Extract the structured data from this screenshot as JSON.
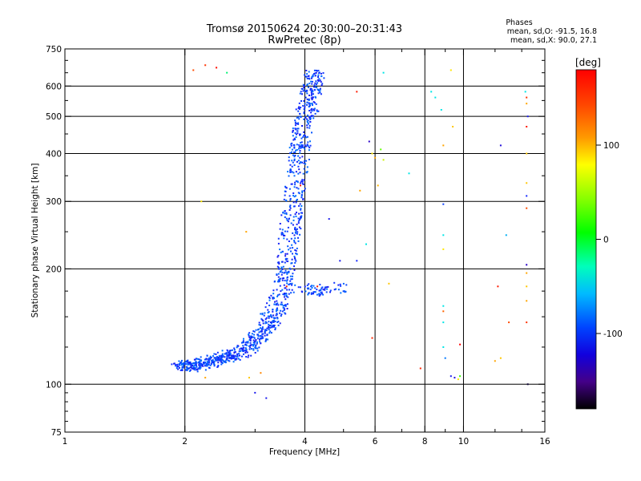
{
  "title": "Tromsø 20150624 20:30:00–20:31:43",
  "subtitle": "RwPretec (8p)",
  "stats": {
    "heading": "Phases",
    "line1": "mean, sd,O: -91.5, 16.8",
    "line2": "mean, sd,X:  90.0, 27.1"
  },
  "chart_data": {
    "type": "scatter",
    "title": "Tromsø 20150624 20:30:00–20:31:43",
    "subtitle": "RwPretec (8p)",
    "xlabel": "Frequency [MHz]",
    "ylabel": "Stationary phase Virtual Height [km]",
    "xscale": "log2",
    "yscale": "log",
    "xlim": [
      1,
      16
    ],
    "ylim": [
      75,
      750
    ],
    "x_ticks": [
      1,
      2,
      4,
      6,
      8,
      10,
      16
    ],
    "x_tick_labels": [
      "1",
      "2",
      "4",
      "6",
      "8",
      "10",
      "16"
    ],
    "y_ticks": [
      75,
      100,
      200,
      300,
      400,
      500,
      600,
      750
    ],
    "y_tick_labels": [
      "75",
      "100",
      "200",
      "300",
      "400",
      "500",
      "600",
      "750"
    ],
    "grid": true,
    "colorbar": {
      "label": "[deg]",
      "range": [
        -180,
        180
      ],
      "ticks": [
        100,
        0,
        -100
      ],
      "tick_labels": [
        "100",
        "0",
        "-100"
      ]
    },
    "trace_O_mode": {
      "phase_deg": -100,
      "points": [
        [
          1.95,
          112
        ],
        [
          2.0,
          112
        ],
        [
          2.1,
          111
        ],
        [
          2.2,
          113
        ],
        [
          2.3,
          114
        ],
        [
          2.4,
          116
        ],
        [
          2.5,
          117
        ],
        [
          2.6,
          119
        ],
        [
          2.75,
          120
        ],
        [
          2.9,
          125
        ],
        [
          3.0,
          130
        ],
        [
          3.1,
          135
        ],
        [
          3.2,
          142
        ],
        [
          3.3,
          150
        ],
        [
          3.4,
          160
        ],
        [
          3.5,
          172
        ],
        [
          3.55,
          190
        ],
        [
          3.6,
          210
        ],
        [
          3.65,
          240
        ],
        [
          3.7,
          270
        ],
        [
          3.75,
          300
        ],
        [
          3.8,
          340
        ],
        [
          3.85,
          380
        ],
        [
          3.9,
          420
        ],
        [
          3.95,
          460
        ],
        [
          4.0,
          500
        ],
        [
          4.1,
          540
        ],
        [
          4.15,
          580
        ],
        [
          4.2,
          620
        ],
        [
          4.25,
          650
        ]
      ]
    },
    "trace_branch": {
      "phase_deg": -100,
      "points": [
        [
          3.9,
          178
        ],
        [
          4.1,
          176
        ],
        [
          4.3,
          175
        ],
        [
          4.6,
          177
        ],
        [
          4.9,
          180
        ]
      ]
    },
    "outliers": [
      {
        "x": 2.1,
        "y": 660,
        "phase": 150
      },
      {
        "x": 2.25,
        "y": 680,
        "phase": 160
      },
      {
        "x": 2.4,
        "y": 670,
        "phase": 175
      },
      {
        "x": 2.55,
        "y": 650,
        "phase": -20
      },
      {
        "x": 2.85,
        "y": 250,
        "phase": 120
      },
      {
        "x": 2.2,
        "y": 300,
        "phase": 100
      },
      {
        "x": 3.0,
        "y": 95,
        "phase": -120
      },
      {
        "x": 3.2,
        "y": 92,
        "phase": -120
      },
      {
        "x": 3.1,
        "y": 107,
        "phase": 130
      },
      {
        "x": 2.9,
        "y": 104,
        "phase": 110
      },
      {
        "x": 2.25,
        "y": 104,
        "phase": 120
      },
      {
        "x": 5.4,
        "y": 580,
        "phase": 170
      },
      {
        "x": 5.8,
        "y": 430,
        "phase": -140
      },
      {
        "x": 5.9,
        "y": 400,
        "phase": 100
      },
      {
        "x": 6.0,
        "y": 390,
        "phase": 120
      },
      {
        "x": 6.2,
        "y": 410,
        "phase": 40
      },
      {
        "x": 6.3,
        "y": 385,
        "phase": 80
      },
      {
        "x": 5.5,
        "y": 320,
        "phase": 120
      },
      {
        "x": 6.1,
        "y": 330,
        "phase": 115
      },
      {
        "x": 6.3,
        "y": 650,
        "phase": -40
      },
      {
        "x": 5.7,
        "y": 232,
        "phase": -40
      },
      {
        "x": 6.5,
        "y": 183,
        "phase": 110
      },
      {
        "x": 5.9,
        "y": 132,
        "phase": 165
      },
      {
        "x": 7.3,
        "y": 355,
        "phase": -40
      },
      {
        "x": 7.8,
        "y": 110,
        "phase": 165
      },
      {
        "x": 8.3,
        "y": 580,
        "phase": -40
      },
      {
        "x": 8.5,
        "y": 560,
        "phase": -40
      },
      {
        "x": 8.8,
        "y": 520,
        "phase": -40
      },
      {
        "x": 8.9,
        "y": 420,
        "phase": 120
      },
      {
        "x": 8.9,
        "y": 295,
        "phase": -100
      },
      {
        "x": 8.9,
        "y": 245,
        "phase": -40
      },
      {
        "x": 8.9,
        "y": 225,
        "phase": 100
      },
      {
        "x": 8.9,
        "y": 160,
        "phase": -40
      },
      {
        "x": 8.9,
        "y": 145,
        "phase": -40
      },
      {
        "x": 8.9,
        "y": 125,
        "phase": -40
      },
      {
        "x": 9.0,
        "y": 117,
        "phase": -80
      },
      {
        "x": 9.3,
        "y": 105,
        "phase": -120
      },
      {
        "x": 9.5,
        "y": 104,
        "phase": -130
      },
      {
        "x": 9.7,
        "y": 103,
        "phase": 100
      },
      {
        "x": 9.8,
        "y": 105,
        "phase": 20
      },
      {
        "x": 9.3,
        "y": 660,
        "phase": 100
      },
      {
        "x": 9.4,
        "y": 470,
        "phase": 110
      },
      {
        "x": 8.9,
        "y": 155,
        "phase": 140
      },
      {
        "x": 9.8,
        "y": 127,
        "phase": 180
      },
      {
        "x": 12.2,
        "y": 180,
        "phase": 170
      },
      {
        "x": 12.4,
        "y": 420,
        "phase": -130
      },
      {
        "x": 12.8,
        "y": 245,
        "phase": -60
      },
      {
        "x": 13.0,
        "y": 145,
        "phase": 150
      },
      {
        "x": 12.0,
        "y": 115,
        "phase": 120
      },
      {
        "x": 12.4,
        "y": 117,
        "phase": 110
      },
      {
        "x": 14.3,
        "y": 580,
        "phase": -40
      },
      {
        "x": 14.4,
        "y": 560,
        "phase": 160
      },
      {
        "x": 14.4,
        "y": 540,
        "phase": 120
      },
      {
        "x": 14.5,
        "y": 500,
        "phase": -120
      },
      {
        "x": 14.4,
        "y": 470,
        "phase": 170
      },
      {
        "x": 14.4,
        "y": 400,
        "phase": 110
      },
      {
        "x": 14.4,
        "y": 335,
        "phase": 110
      },
      {
        "x": 14.4,
        "y": 310,
        "phase": -110
      },
      {
        "x": 14.4,
        "y": 288,
        "phase": 150
      },
      {
        "x": 14.4,
        "y": 205,
        "phase": -140
      },
      {
        "x": 14.4,
        "y": 195,
        "phase": 120
      },
      {
        "x": 14.4,
        "y": 180,
        "phase": 110
      },
      {
        "x": 14.4,
        "y": 165,
        "phase": 120
      },
      {
        "x": 14.4,
        "y": 145,
        "phase": 160
      },
      {
        "x": 14.5,
        "y": 100,
        "phase": -170
      },
      {
        "x": 5.4,
        "y": 210,
        "phase": -110
      },
      {
        "x": 4.9,
        "y": 210,
        "phase": -120
      },
      {
        "x": 4.6,
        "y": 270,
        "phase": -120
      },
      {
        "x": 4.3,
        "y": 180,
        "phase": 170
      },
      {
        "x": 3.6,
        "y": 180,
        "phase": 170
      },
      {
        "x": 3.9,
        "y": 330,
        "phase": 170
      }
    ]
  }
}
